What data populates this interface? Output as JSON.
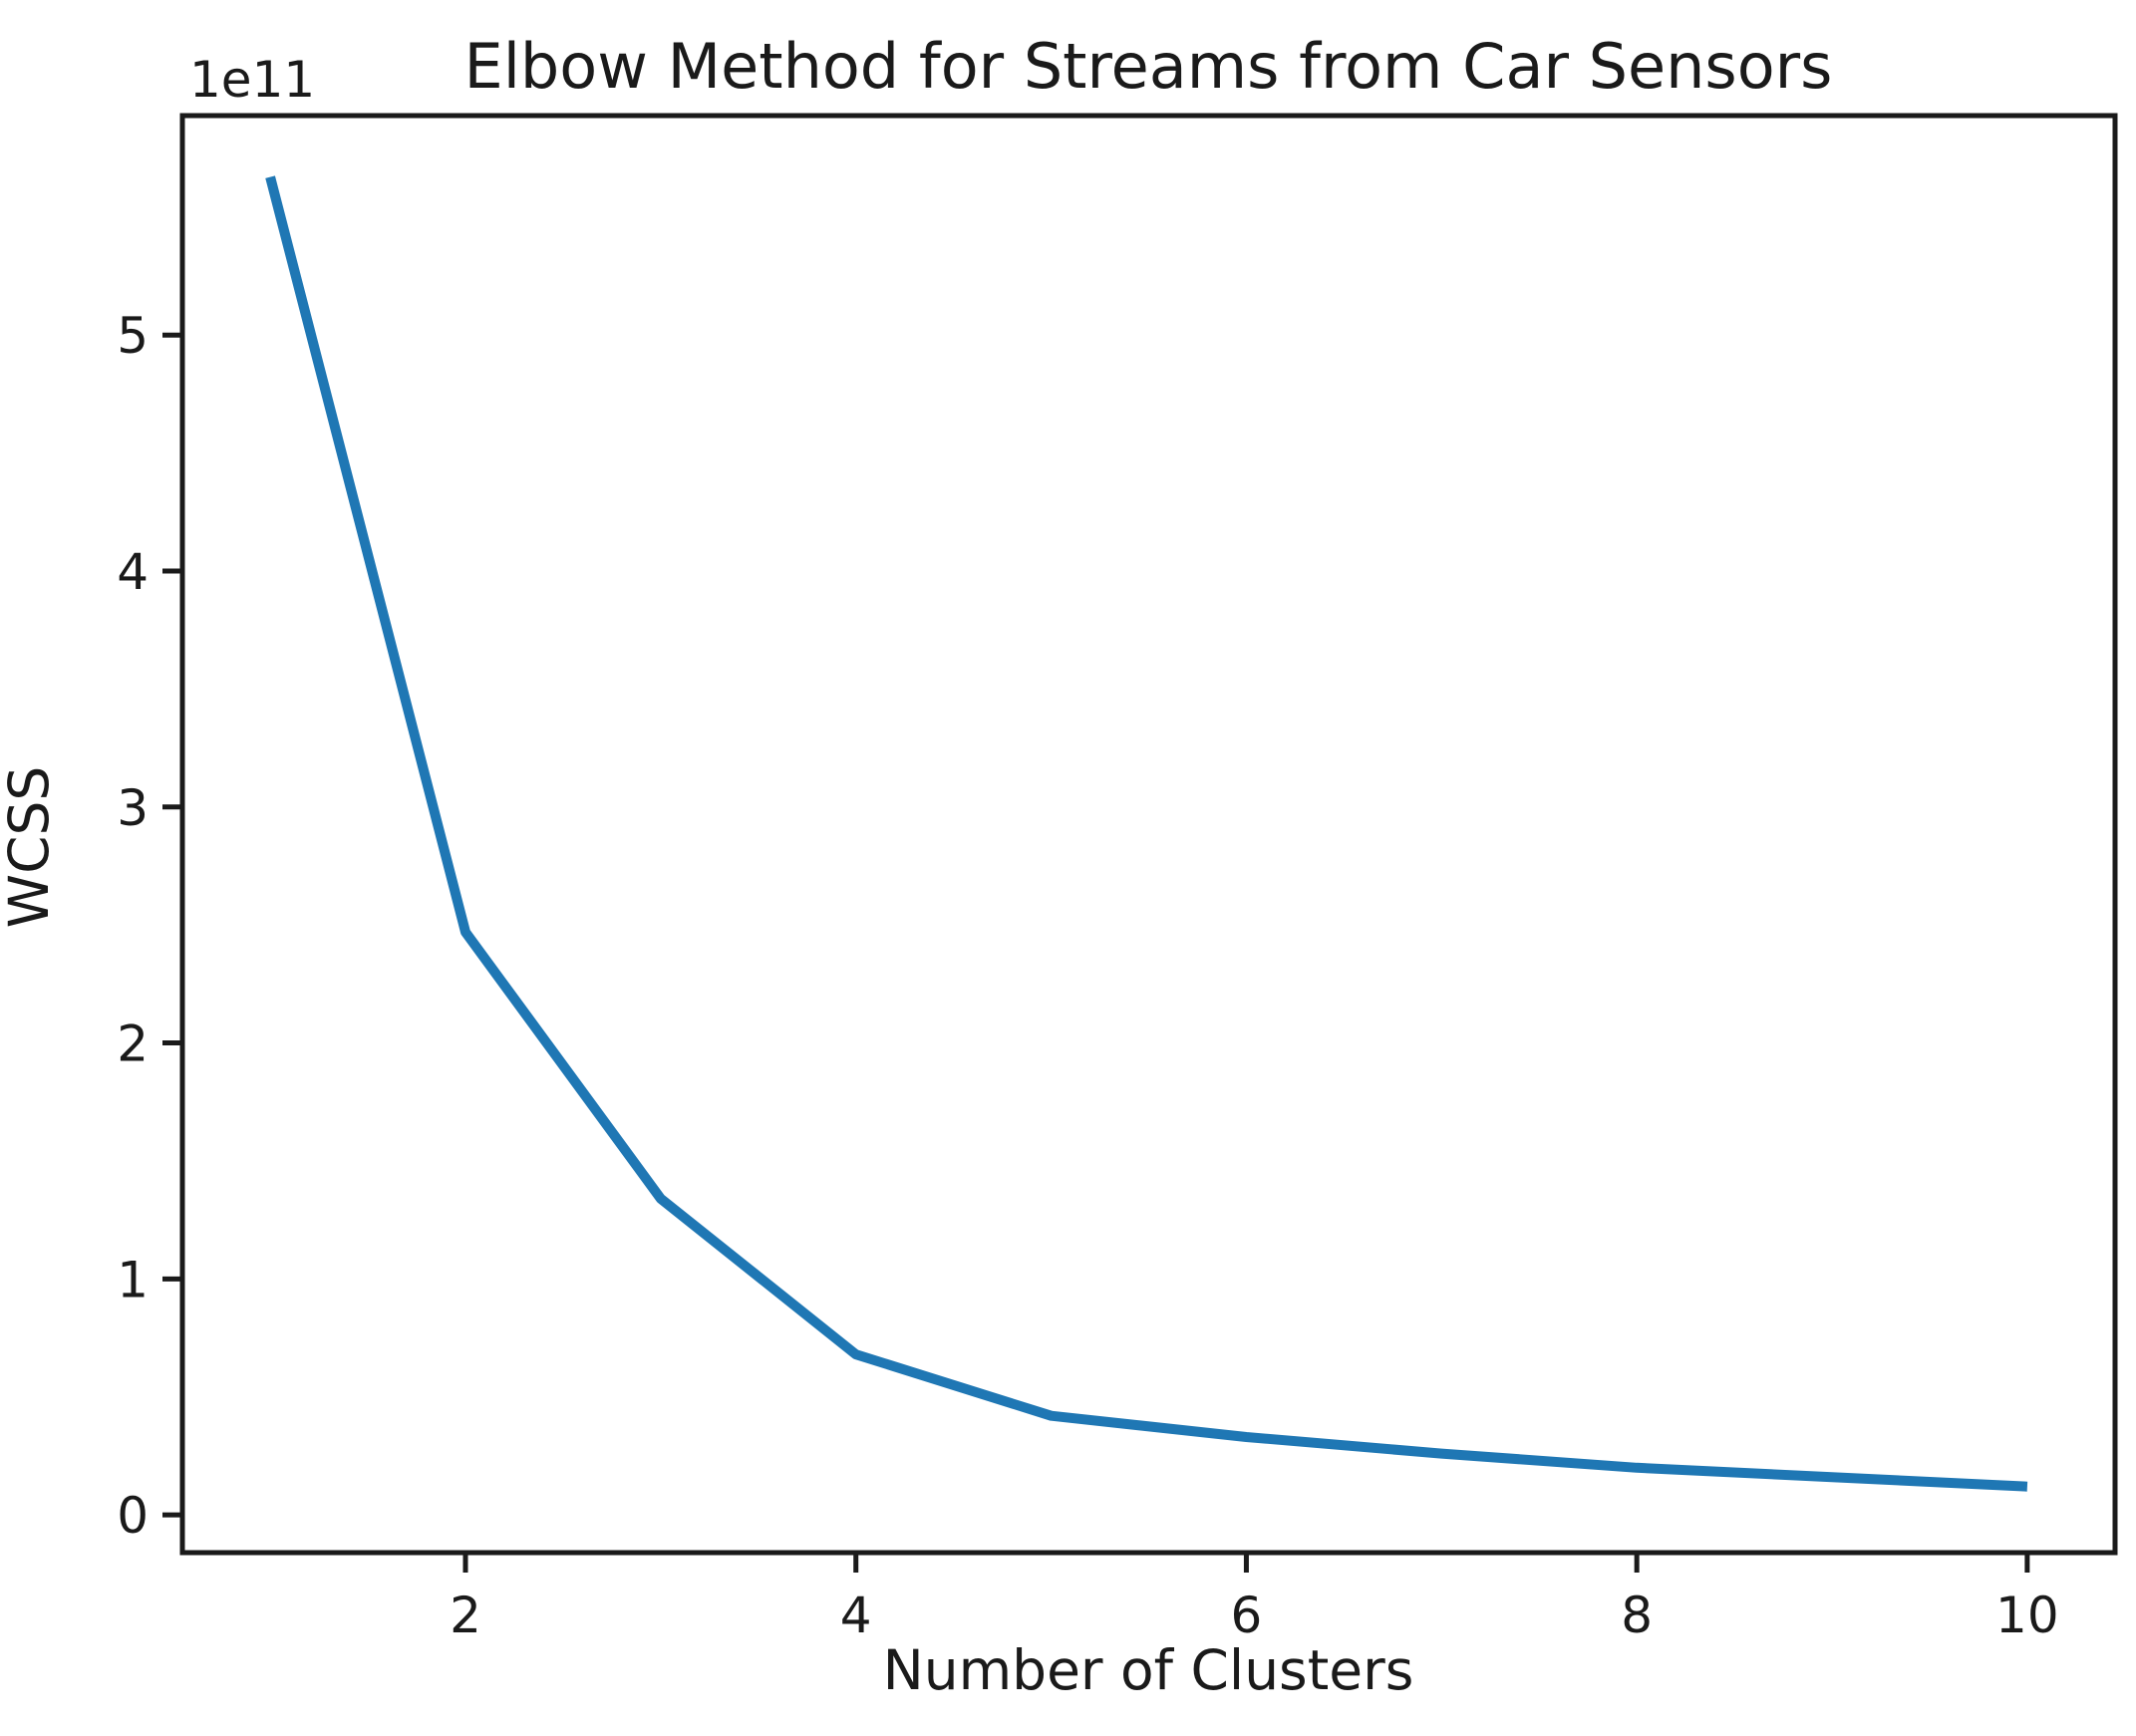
{
  "figure": {
    "background_color": "#ffffff",
    "text_color": "#1a1a1a",
    "spine_color": "#1a1a1a"
  },
  "chart_data": {
    "type": "line",
    "title": "Elbow Method for Streams from Car Sensors",
    "xlabel": "Number of Clusters",
    "ylabel": "WCSS",
    "y_offset_text": "1e11",
    "x": [
      1,
      2,
      3,
      4,
      5,
      6,
      7,
      8,
      9,
      10
    ],
    "values_1e11": [
      5.67,
      2.47,
      1.34,
      0.68,
      0.42,
      0.33,
      0.26,
      0.2,
      0.16,
      0.12
    ],
    "y_scale_factor": 100000000000,
    "xticks": [
      2,
      4,
      6,
      8,
      10
    ],
    "yticks": [
      0,
      1,
      2,
      3,
      4,
      5
    ],
    "xlim": [
      0.55,
      10.45
    ],
    "ylim_1e11": [
      -0.16,
      5.93
    ],
    "grid": false,
    "legend": null,
    "line_color": "#1f77b4",
    "line_width": 10
  }
}
